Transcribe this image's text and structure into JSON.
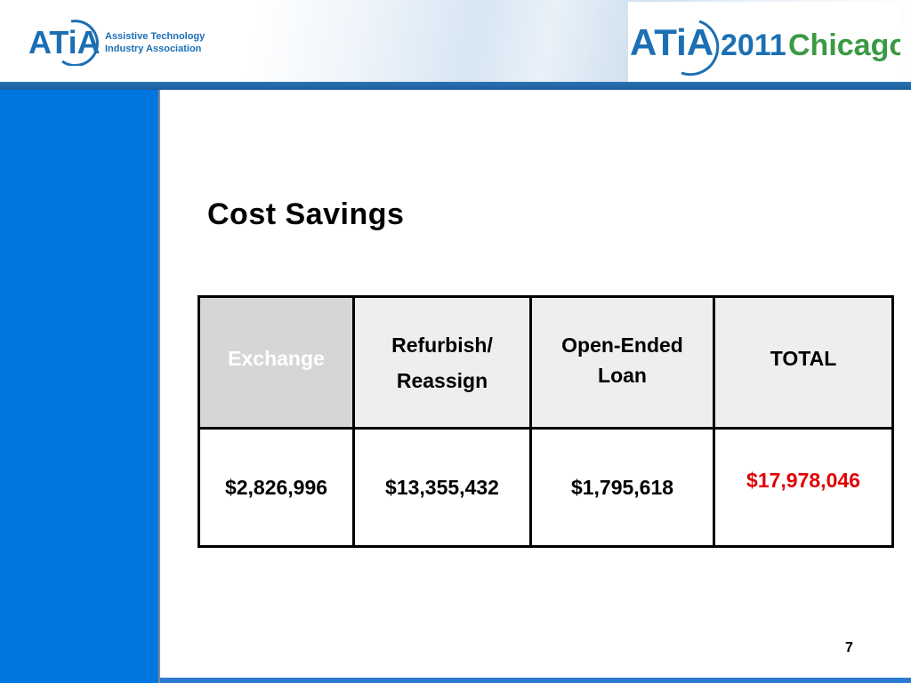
{
  "header": {
    "org_logo": {
      "mark": "ATiA",
      "line1": "Assistive Technology",
      "line2": "Industry Association"
    },
    "event_logo": {
      "mark": "ATiA",
      "year": "2011",
      "city": "Chicago"
    }
  },
  "slide": {
    "title": "Cost Savings",
    "page_number": "7"
  },
  "table": {
    "headers": [
      "Exchange",
      "Refurbish/",
      "Reassign",
      "Open-Ended",
      "Loan",
      "TOTAL"
    ],
    "values": [
      "$2,826,996",
      "$13,355,432",
      "$1,795,618",
      "$17,978,046"
    ]
  },
  "colors": {
    "side_panel": "#0077e0",
    "header_stripe": "#2c73b4",
    "logo_blue": "#1b6fb4",
    "logo_green": "#3b9a44",
    "total_red": "#e00000"
  }
}
